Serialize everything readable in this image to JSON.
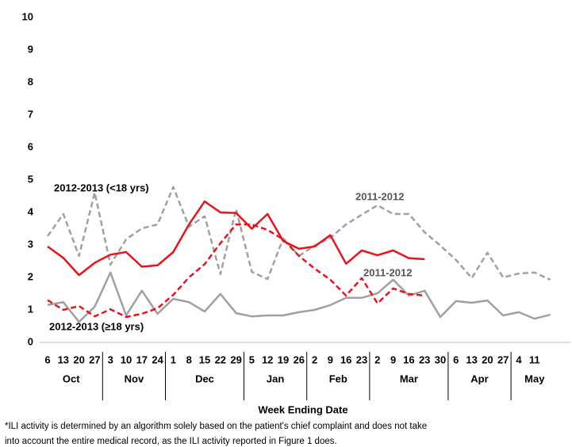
{
  "chart_data": {
    "type": "line",
    "xlabel": "Week Ending Date",
    "categories": [
      "6",
      "13",
      "20",
      "27",
      "3",
      "10",
      "17",
      "24",
      "1",
      "8",
      "15",
      "22",
      "29",
      "5",
      "12",
      "19",
      "26",
      "2",
      "9",
      "16",
      "23",
      "2",
      "9",
      "16",
      "23",
      "30",
      "6",
      "13",
      "20",
      "27",
      "4",
      "11",
      null
    ],
    "months": [
      "Oct",
      "Oct",
      "Oct",
      "Oct",
      "Nov",
      "Nov",
      "Nov",
      "Nov",
      "Dec",
      "Dec",
      "Dec",
      "Dec",
      "Dec",
      "Jan",
      "Jan",
      "Jan",
      "Jan",
      "Feb",
      "Feb",
      "Feb",
      "Feb",
      "Mar",
      "Mar",
      "Mar",
      "Mar",
      "Mar",
      "Apr",
      "Apr",
      "Apr",
      "Apr",
      "May",
      "May",
      "May"
    ],
    "ylim": [
      0,
      10
    ],
    "yticks": [
      0,
      1,
      2,
      3,
      4,
      5,
      6,
      7,
      8,
      9,
      10
    ],
    "series": [
      {
        "name": "2012-2013 (<18 yrs)",
        "color": "#e8131b",
        "dashed": false,
        "values": [
          2.95,
          2.6,
          2.07,
          2.45,
          2.7,
          2.78,
          2.33,
          2.37,
          2.78,
          3.63,
          4.34,
          4.0,
          3.98,
          3.5,
          3.95,
          3.12,
          2.88,
          2.95,
          3.3,
          2.42,
          2.83,
          2.68,
          2.83,
          2.59,
          2.56,
          null,
          null,
          null,
          null,
          null,
          null,
          null,
          null
        ]
      },
      {
        "name": "2012-2013 (≥18 yrs)",
        "color": "#e8131b",
        "dashed": true,
        "values": [
          1.3,
          1.0,
          1.12,
          0.8,
          1.02,
          0.78,
          0.88,
          1.05,
          1.46,
          2.0,
          2.41,
          3.05,
          3.63,
          3.63,
          3.46,
          3.17,
          2.66,
          2.27,
          1.93,
          1.44,
          1.98,
          1.2,
          1.66,
          1.49,
          1.44,
          null,
          null,
          null,
          null,
          null,
          null,
          null,
          null
        ]
      },
      {
        "name": "2011-2012",
        "color": "#a0a0a0",
        "dashed": true,
        "values": [
          3.27,
          3.95,
          2.66,
          4.61,
          2.39,
          3.17,
          3.51,
          3.63,
          4.78,
          3.56,
          3.88,
          2.1,
          4.1,
          2.17,
          1.95,
          3.2,
          2.66,
          2.98,
          3.22,
          3.63,
          3.93,
          4.22,
          3.95,
          3.95,
          3.39,
          2.98,
          2.54,
          1.98,
          2.76,
          2.0,
          2.12,
          2.15,
          1.93
        ]
      },
      {
        "name": "2011-2012",
        "color": "#a0a0a0",
        "dashed": false,
        "values": [
          1.15,
          1.24,
          0.63,
          1.1,
          2.15,
          0.83,
          1.59,
          0.88,
          1.34,
          1.24,
          0.95,
          1.49,
          0.9,
          0.8,
          0.83,
          0.83,
          0.93,
          1.0,
          1.15,
          1.37,
          1.37,
          1.51,
          1.93,
          1.44,
          1.59,
          0.78,
          1.27,
          1.22,
          1.29,
          0.83,
          0.93,
          0.73,
          0.85
        ]
      }
    ],
    "footnote": [
      "*ILI activity is determined by an algorithm solely based on the patient's chief complaint and does not take",
      "into account the entire medical record, as the ILI activity reported in Figure 1 does."
    ]
  }
}
